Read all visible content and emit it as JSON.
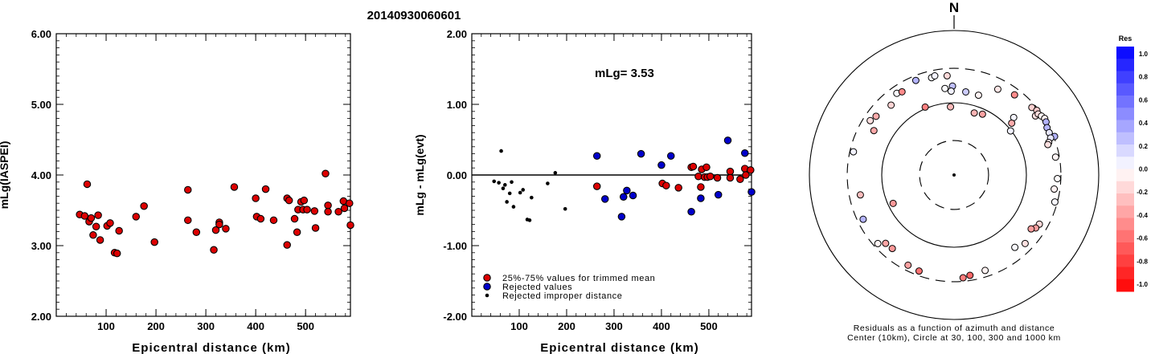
{
  "page_title": "20140930060601",
  "colors": {
    "accepted": "#dd0000",
    "rejected": "#0000cc",
    "improper": "#000000",
    "res_positive": "#0000ff",
    "res_negative": "#ff0000"
  },
  "chart_data": [
    {
      "type": "scatter",
      "ylabel": "mLg(IASPEI)",
      "xlabel": "Epicentral distance (km)",
      "xlim": [
        0,
        590
      ],
      "ylim": [
        2.0,
        6.0
      ],
      "y_ticks": [
        "2.00",
        "3.00",
        "4.00",
        "5.00",
        "6.00"
      ],
      "x_ticks": [
        "100",
        "200",
        "300",
        "400",
        "500"
      ],
      "x_tick_values": [
        100,
        200,
        300,
        400,
        500
      ],
      "y_tick_values": [
        2,
        3,
        4,
        5,
        6
      ],
      "points": [
        [
          47,
          3.44
        ],
        [
          57,
          3.42
        ],
        [
          62,
          3.87
        ],
        [
          66,
          3.34
        ],
        [
          70,
          3.39
        ],
        [
          74,
          3.15
        ],
        [
          80,
          3.27
        ],
        [
          84,
          3.43
        ],
        [
          88,
          3.08
        ],
        [
          102,
          3.28
        ],
        [
          108,
          3.32
        ],
        [
          117,
          2.9
        ],
        [
          122,
          2.89
        ],
        [
          126,
          3.21
        ],
        [
          160,
          3.41
        ],
        [
          176,
          3.56
        ],
        [
          197,
          3.05
        ],
        [
          264,
          3.79
        ],
        [
          264,
          3.36
        ],
        [
          281,
          3.19
        ],
        [
          316,
          2.94
        ],
        [
          320,
          3.22
        ],
        [
          327,
          3.33
        ],
        [
          327,
          3.3
        ],
        [
          340,
          3.24
        ],
        [
          357,
          3.83
        ],
        [
          400,
          3.67
        ],
        [
          402,
          3.41
        ],
        [
          410,
          3.38
        ],
        [
          420,
          3.8
        ],
        [
          436,
          3.36
        ],
        [
          463,
          3.67
        ],
        [
          463,
          3.01
        ],
        [
          467,
          3.64
        ],
        [
          478,
          3.38
        ],
        [
          483,
          3.19
        ],
        [
          485,
          3.51
        ],
        [
          491,
          3.62
        ],
        [
          495,
          3.51
        ],
        [
          497,
          3.64
        ],
        [
          503,
          3.51
        ],
        [
          518,
          3.49
        ],
        [
          520,
          3.25
        ],
        [
          540,
          4.02
        ],
        [
          545,
          3.57
        ],
        [
          545,
          3.48
        ],
        [
          566,
          3.48
        ],
        [
          576,
          3.63
        ],
        [
          578,
          3.53
        ],
        [
          588,
          3.6
        ],
        [
          590,
          3.29
        ]
      ]
    },
    {
      "type": "scatter",
      "ylabel": "mLg - mLg(evt)",
      "xlabel": "Epicentral distance (km)",
      "annotation": "mLg= 3.53",
      "xlim": [
        0,
        590
      ],
      "ylim": [
        -2.0,
        2.0
      ],
      "y_ticks": [
        "-2.00",
        "-1.00",
        "0.00",
        "1.00",
        "2.00"
      ],
      "x_ticks": [
        "100",
        "200",
        "300",
        "400",
        "500"
      ],
      "x_tick_values": [
        100,
        200,
        300,
        400,
        500
      ],
      "y_tick_values": [
        -2,
        -1,
        0,
        1,
        2
      ],
      "zero_line": 0,
      "legend": [
        {
          "label": "25%-75% values for trimmed mean",
          "kind": "accepted"
        },
        {
          "label": "Rejected values",
          "kind": "rejected"
        },
        {
          "label": "Rejected improper distance",
          "kind": "improper"
        }
      ],
      "accepted": [
        [
          264,
          -0.16
        ],
        [
          402,
          -0.12
        ],
        [
          410,
          -0.15
        ],
        [
          436,
          -0.18
        ],
        [
          463,
          0.11
        ],
        [
          467,
          0.12
        ],
        [
          478,
          -0.02
        ],
        [
          483,
          -0.17
        ],
        [
          485,
          0.08
        ],
        [
          491,
          -0.03
        ],
        [
          495,
          0.11
        ],
        [
          497,
          -0.03
        ],
        [
          503,
          -0.02
        ],
        [
          518,
          -0.04
        ],
        [
          545,
          0.05
        ],
        [
          545,
          -0.04
        ],
        [
          566,
          -0.06
        ],
        [
          576,
          0.09
        ],
        [
          578,
          0.0
        ],
        [
          588,
          0.07
        ]
      ],
      "rejected": [
        [
          264,
          0.27
        ],
        [
          281,
          -0.34
        ],
        [
          316,
          -0.59
        ],
        [
          320,
          -0.31
        ],
        [
          327,
          -0.22
        ],
        [
          340,
          -0.29
        ],
        [
          357,
          0.3
        ],
        [
          400,
          0.14
        ],
        [
          420,
          0.27
        ],
        [
          463,
          -0.52
        ],
        [
          483,
          -0.33
        ],
        [
          520,
          -0.28
        ],
        [
          540,
          0.49
        ],
        [
          576,
          0.31
        ],
        [
          590,
          -0.24
        ]
      ],
      "improper": [
        [
          47,
          -0.09
        ],
        [
          57,
          -0.11
        ],
        [
          62,
          0.34
        ],
        [
          66,
          -0.19
        ],
        [
          70,
          -0.14
        ],
        [
          74,
          -0.38
        ],
        [
          80,
          -0.26
        ],
        [
          84,
          -0.1
        ],
        [
          88,
          -0.45
        ],
        [
          102,
          -0.25
        ],
        [
          108,
          -0.21
        ],
        [
          117,
          -0.63
        ],
        [
          122,
          -0.64
        ],
        [
          126,
          -0.32
        ],
        [
          160,
          -0.12
        ],
        [
          176,
          0.03
        ],
        [
          197,
          -0.48
        ]
      ]
    },
    {
      "type": "polar-scatter",
      "north_label": "N",
      "caption_line1": "Residuals as a function of azimuth and distance",
      "caption_line2": "Center (10km), Circle at 30, 100, 300 and 1000 km",
      "rings_km": [
        30,
        100,
        300,
        1000
      ],
      "colorbar": {
        "title": "Res",
        "labels": [
          "1.0",
          "0.8",
          "0.6",
          "0.4",
          "0.2",
          "0.0",
          "-0.2",
          "-0.4",
          "-0.6",
          "-0.8",
          "-1.0"
        ],
        "range": [
          -1.0,
          1.0
        ]
      },
      "points": [
        [
          -4,
          238,
          -0.15
        ],
        [
          -1,
          170,
          0.25
        ],
        [
          -2,
          145,
          0.05
        ],
        [
          8,
          145,
          0.2
        ],
        [
          -6,
          160,
          0.01
        ],
        [
          17,
          143,
          -0.05
        ],
        [
          27,
          215,
          -0.1
        ],
        [
          37,
          245,
          -0.45
        ],
        [
          46,
          140,
          0.04
        ],
        [
          48,
          118,
          -0.33
        ],
        [
          54,
          246,
          -0.12
        ],
        [
          49,
          266,
          -0.18
        ],
        [
          52,
          283,
          -0.2
        ],
        [
          54,
          274,
          -0.13
        ],
        [
          56,
          287,
          -0.04
        ],
        [
          58,
          300,
          -0.05
        ],
        [
          60,
          294,
          0.3
        ],
        [
          63,
          277,
          0.29
        ],
        [
          66,
          275,
          0.09
        ],
        [
          69,
          308,
          0.3
        ],
        [
          69,
          269,
          0.09
        ],
        [
          71,
          242,
          -0.06
        ],
        [
          72,
          231,
          -0.12
        ],
        [
          80,
          266,
          -0.04
        ],
        [
          92,
          269,
          -0.01
        ],
        [
          98,
          250,
          -0.06
        ],
        [
          105,
          277,
          0.03
        ],
        [
          120,
          230,
          -0.15
        ],
        [
          123,
          222,
          -0.38
        ],
        [
          125,
          200,
          -0.38
        ],
        [
          134,
          232,
          -0.12
        ],
        [
          140,
          203,
          0.02
        ],
        [
          162,
          245,
          -0.05
        ],
        [
          175,
          268,
          -0.51
        ],
        [
          171,
          255,
          -0.6
        ],
        [
          200,
          260,
          -0.55
        ],
        [
          207,
          252,
          -0.37
        ],
        [
          220,
          213,
          -0.4
        ],
        [
          225,
          218,
          -0.35
        ],
        [
          228,
          262,
          -0.04
        ],
        [
          244,
          250,
          0.29
        ],
        [
          258,
          211,
          -0.26
        ],
        [
          283,
          268,
          0.05
        ],
        [
          303,
          241,
          -0.12
        ],
        [
          307,
          224,
          -0.33
        ],
        [
          325,
          240,
          0.02
        ],
        [
          328,
          228,
          -0.46
        ],
        [
          338,
          258,
          0.3
        ],
        [
          347,
          241,
          0.01
        ],
        [
          349,
          250,
          0.05
        ],
        [
          299,
          185,
          -0.34
        ],
        [
          318,
          200,
          -0.17
        ],
        [
          337,
          105,
          -0.5
        ],
        [
          357,
          88,
          -0.27
        ],
        [
          52,
          98,
          0.05
        ],
        [
          18,
          80,
          -0.29
        ],
        [
          25,
          85,
          -0.36
        ],
        [
          245,
          85,
          -0.4
        ]
      ]
    }
  ]
}
